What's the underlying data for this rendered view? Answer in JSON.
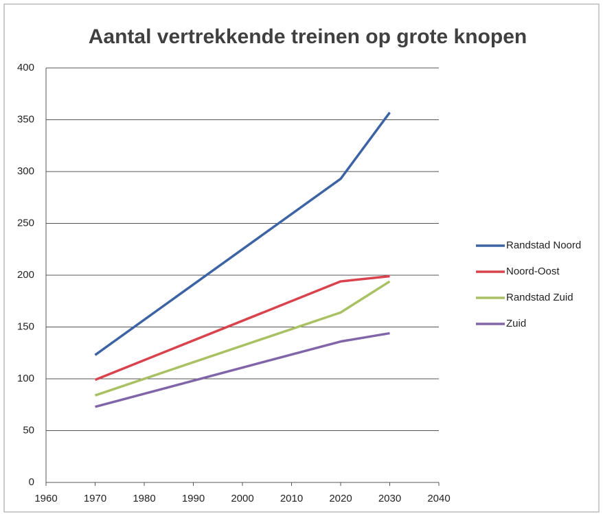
{
  "chart_data": {
    "type": "line",
    "title": "Aantal vertrekkende treinen op grote knopen",
    "x": [
      1970,
      2020,
      2030
    ],
    "series": [
      {
        "name": "Randstad Noord",
        "color": "#3c63a4",
        "values": [
          123,
          293,
          357
        ]
      },
      {
        "name": "Noord-Oost",
        "color": "#d8434e",
        "values": [
          99,
          194,
          199
        ]
      },
      {
        "name": "Randstad Zuid",
        "color": "#a9c163",
        "values": [
          84,
          164,
          194
        ]
      },
      {
        "name": "Zuid",
        "color": "#8065a9",
        "values": [
          73,
          136,
          144
        ]
      }
    ],
    "xlim": [
      1960,
      2040
    ],
    "xticks": [
      1960,
      1970,
      1980,
      1990,
      2000,
      2010,
      2020,
      2030,
      2040
    ],
    "ylim": [
      0,
      400
    ],
    "yticks": [
      0,
      50,
      100,
      150,
      200,
      250,
      300,
      350,
      400
    ],
    "grid": true,
    "legend": "right"
  }
}
